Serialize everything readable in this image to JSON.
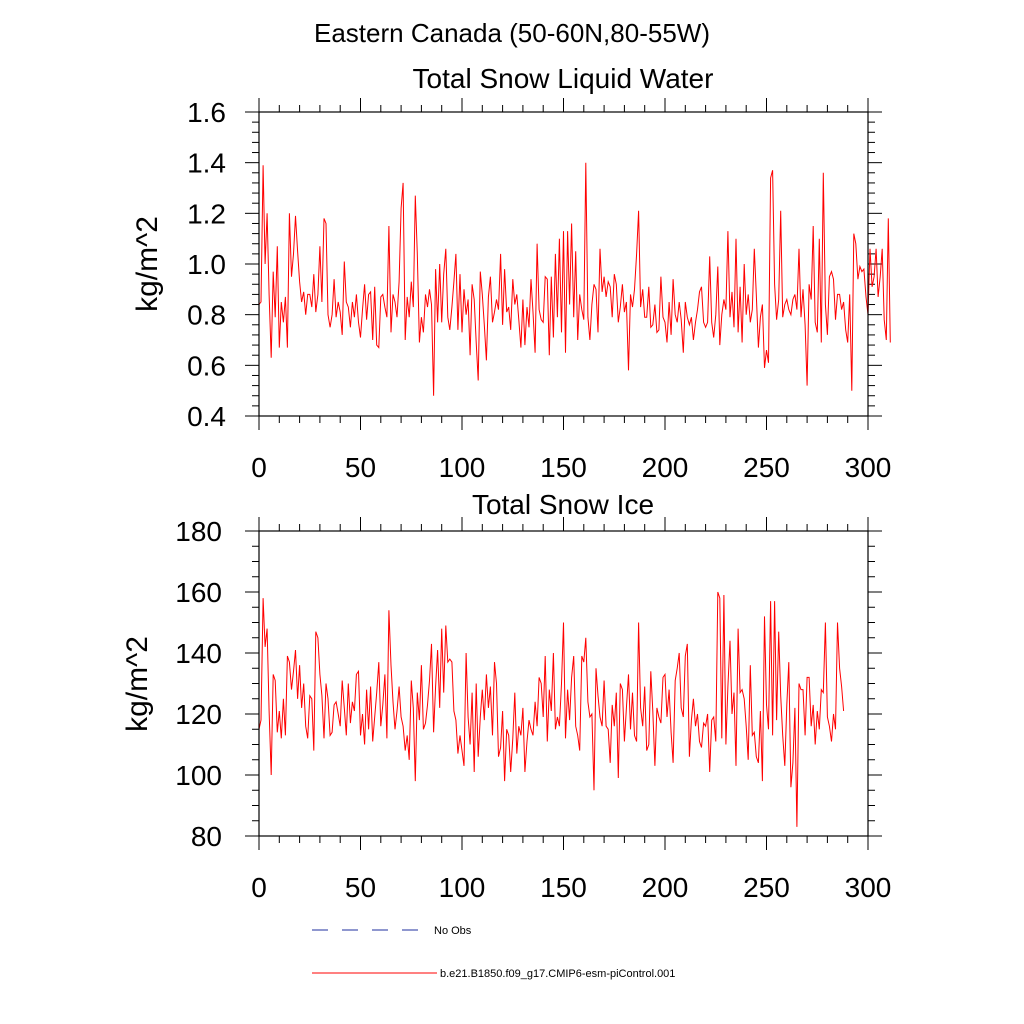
{
  "page": {
    "title": "Eastern Canada (50-60N,80-55W)"
  },
  "colors": {
    "series": "#ff0000",
    "obs": "#1f2f9f",
    "frame": "#000000"
  },
  "legend": {
    "placement": "bottom-left",
    "items": [
      {
        "label": "No Obs",
        "style": "dashed",
        "color": "#1f2f9f"
      },
      {
        "label": "b.e21.B1850.f09_g17.CMIP6-esm-piControl.001",
        "style": "solid",
        "color": "#ff0000"
      }
    ]
  },
  "chart_data": [
    {
      "type": "line",
      "title": "Total Snow Liquid Water",
      "ylabel": "kg/m^2",
      "xlabel": "",
      "xlim": [
        0,
        300
      ],
      "ylim": [
        0.4,
        1.6
      ],
      "xticks": [
        0,
        50,
        100,
        150,
        200,
        250,
        300
      ],
      "xtick_labels": [
        "0",
        "50",
        "100",
        "150",
        "200",
        "250",
        "300"
      ],
      "yticks": [
        0.4,
        0.6,
        0.8,
        1.0,
        1.2,
        1.4,
        1.6
      ],
      "ytick_labels": [
        "0.4",
        "0.6",
        "0.8",
        "1.0",
        "1.2",
        "1.4",
        "1.6"
      ],
      "grid": false,
      "series": [
        {
          "x_start": 0,
          "x_step": 1,
          "values": [
            0.84,
            0.85,
            1.39,
            1.0,
            1.2,
            0.88,
            0.63,
            0.97,
            0.79,
            1.07,
            0.67,
            0.85,
            0.77,
            0.87,
            0.67,
            1.2,
            0.95,
            1.04,
            1.19,
            1.05,
            0.93,
            0.85,
            0.89,
            0.8,
            0.88,
            0.88,
            0.83,
            0.96,
            0.81,
            0.88,
            1.07,
            0.85,
            1.18,
            1.16,
            0.8,
            0.75,
            0.8,
            0.94,
            0.79,
            0.85,
            0.81,
            0.72,
            1.01,
            0.85,
            0.83,
            0.75,
            0.85,
            0.79,
            0.88,
            0.77,
            0.71,
            0.82,
            0.92,
            0.78,
            0.88,
            0.89,
            0.7,
            0.91,
            0.68,
            0.67,
            0.87,
            0.88,
            0.83,
            0.79,
            1.15,
            0.73,
            0.88,
            0.85,
            0.79,
            0.93,
            1.22,
            1.32,
            0.7,
            0.87,
            0.79,
            0.93,
            0.83,
            1.27,
            1.04,
            0.69,
            0.79,
            0.73,
            0.88,
            0.83,
            0.9,
            0.84,
            0.48,
            0.98,
            0.77,
            1.0,
            0.77,
            0.96,
            1.06,
            0.79,
            0.74,
            0.83,
            0.93,
            1.04,
            0.74,
            0.96,
            0.73,
            0.9,
            0.8,
            0.86,
            0.64,
            0.92,
            0.86,
            0.69,
            0.54,
            0.97,
            0.88,
            0.76,
            0.62,
            0.87,
            0.95,
            0.77,
            0.81,
            0.86,
            0.82,
            1.04,
            0.76,
            0.98,
            0.81,
            0.83,
            0.74,
            0.94,
            0.84,
            0.88,
            0.78,
            0.67,
            0.86,
            0.68,
            0.83,
            0.75,
            0.94,
            0.81,
            0.65,
            1.08,
            0.82,
            0.78,
            0.77,
            0.95,
            0.94,
            0.64,
            0.95,
            0.71,
            1.04,
            0.79,
            1.1,
            0.73,
            1.13,
            0.65,
            1.13,
            0.84,
            1.16,
            0.79,
            1.05,
            0.7,
            0.88,
            0.82,
            0.78,
            1.4,
            0.79,
            0.7,
            0.84,
            0.92,
            0.9,
            0.73,
            1.06,
            0.89,
            0.95,
            0.87,
            0.93,
            0.91,
            0.79,
            0.96,
            0.92,
            0.77,
            0.83,
            0.92,
            0.81,
            0.85,
            0.58,
            0.88,
            0.83,
            0.9,
            1.04,
            1.21,
            0.83,
            0.9,
            0.79,
            0.79,
            0.91,
            0.75,
            0.76,
            0.84,
            0.73,
            0.74,
            0.95,
            0.79,
            0.77,
            0.69,
            0.85,
            0.72,
            0.94,
            0.8,
            0.77,
            0.85,
            0.78,
            0.65,
            0.85,
            0.79,
            0.76,
            0.79,
            0.7,
            0.77,
            0.82,
            0.89,
            0.91,
            0.77,
            0.75,
            0.77,
            1.03,
            0.77,
            0.71,
            0.8,
            0.99,
            0.68,
            0.8,
            0.86,
            0.82,
            1.13,
            0.79,
            0.89,
            0.75,
            1.1,
            0.73,
            0.91,
            0.69,
            1.0,
            0.8,
            0.88,
            0.77,
            0.82,
            1.06,
            0.88,
            0.67,
            0.79,
            0.84,
            0.59,
            0.66,
            0.61,
            1.34,
            1.37,
            0.92,
            0.78,
            0.86,
            1.21,
            0.79,
            0.84,
            0.86,
            0.82,
            0.8,
            0.86,
            0.88,
            0.82,
            1.06,
            0.79,
            0.9,
            0.76,
            0.52,
            0.92,
            0.86,
            1.15,
            0.77,
            0.73,
            1.1,
            0.69,
            1.36,
            0.84,
            0.72,
            0.95,
            0.97,
            0.94,
            0.78,
            0.88,
            0.88,
            0.82,
            0.85,
            0.74,
            0.69,
            0.88,
            0.5,
            1.12,
            1.08,
            0.94,
            0.99,
            0.97,
            0.98,
            0.87,
            0.8,
            1.06,
            0.91,
            0.95,
            1.06,
            0.87,
            0.95,
            1.06,
            0.78,
            0.7,
            1.18,
            0.69
          ]
        }
      ]
    },
    {
      "type": "line",
      "title": "Total Snow Ice",
      "ylabel": "kg/m^2",
      "xlabel": "",
      "xlim": [
        0,
        300
      ],
      "ylim": [
        80,
        180
      ],
      "xticks": [
        0,
        50,
        100,
        150,
        200,
        250,
        300
      ],
      "xtick_labels": [
        "0",
        "50",
        "100",
        "150",
        "200",
        "250",
        "300"
      ],
      "yticks": [
        80,
        100,
        120,
        140,
        160,
        180
      ],
      "ytick_labels": [
        "80",
        "100",
        "120",
        "140",
        "160",
        "180"
      ],
      "grid": false,
      "series": [
        {
          "x_start": 0,
          "x_step": 1,
          "values": [
            115,
            118,
            158,
            142,
            148,
            121,
            100,
            133,
            131,
            114,
            121,
            112,
            125,
            113,
            139,
            137,
            128,
            134,
            141,
            125,
            136,
            122,
            130,
            116,
            112,
            126,
            125,
            108,
            147,
            145,
            133,
            126,
            112,
            130,
            125,
            113,
            114,
            123,
            124,
            120,
            116,
            131,
            122,
            113,
            130,
            117,
            124,
            121,
            133,
            134,
            113,
            120,
            110,
            128,
            115,
            129,
            111,
            119,
            127,
            137,
            116,
            123,
            133,
            112,
            154,
            136,
            124,
            115,
            121,
            129,
            119,
            116,
            108,
            113,
            105,
            131,
            122,
            98,
            127,
            118,
            136,
            115,
            117,
            123,
            131,
            143,
            114,
            129,
            141,
            122,
            148,
            127,
            149,
            137,
            138,
            137,
            121,
            118,
            107,
            113,
            108,
            103,
            140,
            119,
            110,
            127,
            101,
            130,
            106,
            119,
            128,
            118,
            133,
            122,
            129,
            113,
            137,
            130,
            106,
            109,
            121,
            98,
            115,
            113,
            101,
            112,
            127,
            107,
            116,
            113,
            122,
            101,
            111,
            118,
            115,
            113,
            124,
            116,
            132,
            130,
            119,
            139,
            111,
            128,
            121,
            140,
            115,
            119,
            116,
            130,
            150,
            112,
            128,
            118,
            132,
            139,
            116,
            113,
            108,
            139,
            137,
            145,
            124,
            119,
            120,
            95,
            135,
            126,
            119,
            116,
            131,
            116,
            115,
            104,
            123,
            116,
            127,
            99,
            130,
            128,
            111,
            122,
            133,
            115,
            127,
            113,
            111,
            150,
            122,
            116,
            129,
            108,
            110,
            134,
            121,
            103,
            122,
            119,
            117,
            132,
            133,
            119,
            128,
            114,
            104,
            131,
            135,
            140,
            122,
            119,
            139,
            143,
            106,
            118,
            125,
            116,
            120,
            111,
            109,
            117,
            116,
            120,
            101,
            118,
            119,
            111,
            160,
            158,
            112,
            159,
            110,
            129,
            144,
            120,
            127,
            103,
            148,
            127,
            128,
            125,
            116,
            105,
            136,
            113,
            114,
            106,
            104,
            121,
            98,
            152,
            123,
            115,
            157,
            113,
            157,
            118,
            147,
            126,
            113,
            103,
            123,
            137,
            96,
            104,
            122,
            83,
            130,
            128,
            128,
            113,
            132,
            132,
            116,
            123,
            110,
            121,
            115,
            128,
            127,
            150,
            119,
            116,
            111,
            120,
            115,
            150,
            135,
            129,
            121
          ]
        }
      ]
    }
  ]
}
